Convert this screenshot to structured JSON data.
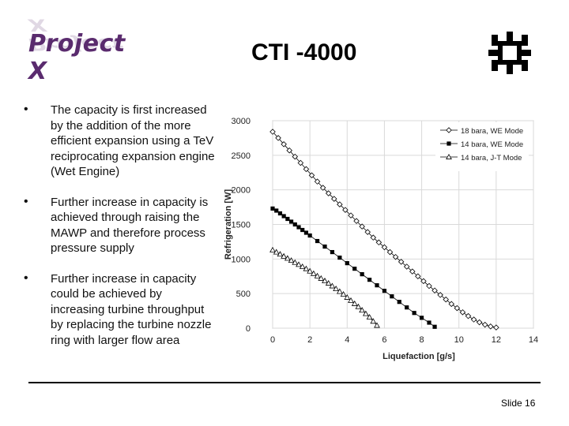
{
  "header": {
    "logo_text": "Project X",
    "title": "CTI -4000",
    "org_icon": "fermilab-logo-icon"
  },
  "bullets": [
    "The capacity is first increased by the addition of the more efficient expansion using a TeV reciprocating expansion engine (Wet Engine)",
    "Further increase in capacity is achieved through raising the MAWP and therefore process pressure supply",
    "Further  increase in capacity could be achieved by increasing turbine throughput by replacing the turbine nozzle ring with larger flow area"
  ],
  "bullet_glyph": "•",
  "footer": {
    "slide_label": "Slide 16"
  },
  "chart_data": {
    "type": "line",
    "title": "",
    "xlabel": "Liquefaction [g/s]",
    "ylabel": "Refrigeration [W]",
    "xlim": [
      0,
      14
    ],
    "ylim": [
      0,
      3000
    ],
    "xticks": [
      0,
      2,
      4,
      6,
      8,
      10,
      12,
      14
    ],
    "yticks": [
      0,
      500,
      1000,
      1500,
      2000,
      2500,
      3000
    ],
    "grid": true,
    "legend_position": "top-right",
    "series": [
      {
        "name": "18 bara, WE Mode",
        "marker": "diamond-open",
        "color": "#000000",
        "x": [
          0,
          0.3,
          0.6,
          0.9,
          1.2,
          1.5,
          1.8,
          2.1,
          2.4,
          2.7,
          3.0,
          3.3,
          3.6,
          3.9,
          4.2,
          4.5,
          4.8,
          5.1,
          5.4,
          5.7,
          6.0,
          6.3,
          6.6,
          6.9,
          7.2,
          7.5,
          7.8,
          8.1,
          8.4,
          8.7,
          9.0,
          9.3,
          9.6,
          9.9,
          10.2,
          10.5,
          10.8,
          11.1,
          11.4,
          11.7,
          12.0
        ],
        "y": [
          2840,
          2750,
          2660,
          2570,
          2480,
          2390,
          2300,
          2210,
          2120,
          2030,
          1950,
          1870,
          1790,
          1710,
          1630,
          1550,
          1470,
          1390,
          1310,
          1240,
          1170,
          1100,
          1030,
          960,
          890,
          820,
          750,
          680,
          610,
          545,
          480,
          415,
          350,
          290,
          230,
          175,
          125,
          85,
          50,
          25,
          10
        ]
      },
      {
        "name": "14 bara, WE Mode",
        "marker": "square-filled",
        "color": "#000000",
        "x": [
          0,
          0.2,
          0.4,
          0.6,
          0.8,
          1.0,
          1.2,
          1.4,
          1.6,
          1.8,
          2.0,
          2.4,
          2.8,
          3.2,
          3.6,
          4.0,
          4.4,
          4.8,
          5.2,
          5.6,
          6.0,
          6.4,
          6.8,
          7.2,
          7.6,
          8.0,
          8.4,
          8.7
        ],
        "y": [
          1730,
          1700,
          1660,
          1620,
          1580,
          1540,
          1500,
          1460,
          1420,
          1380,
          1340,
          1260,
          1180,
          1100,
          1020,
          940,
          860,
          780,
          700,
          620,
          540,
          460,
          380,
          300,
          220,
          150,
          80,
          20
        ]
      },
      {
        "name": "14 bara, J-T Mode",
        "marker": "triangle-open",
        "color": "#000000",
        "x": [
          0,
          0.2,
          0.4,
          0.6,
          0.8,
          1.0,
          1.2,
          1.4,
          1.6,
          1.8,
          2.0,
          2.2,
          2.4,
          2.6,
          2.8,
          3.0,
          3.2,
          3.4,
          3.6,
          3.8,
          4.0,
          4.2,
          4.4,
          4.6,
          4.8,
          5.0,
          5.2,
          5.4,
          5.6
        ],
        "y": [
          1130,
          1100,
          1070,
          1040,
          1010,
          980,
          950,
          920,
          890,
          860,
          825,
          790,
          755,
          720,
          685,
          650,
          610,
          570,
          530,
          490,
          445,
          400,
          355,
          310,
          260,
          210,
          160,
          100,
          40
        ]
      }
    ]
  }
}
